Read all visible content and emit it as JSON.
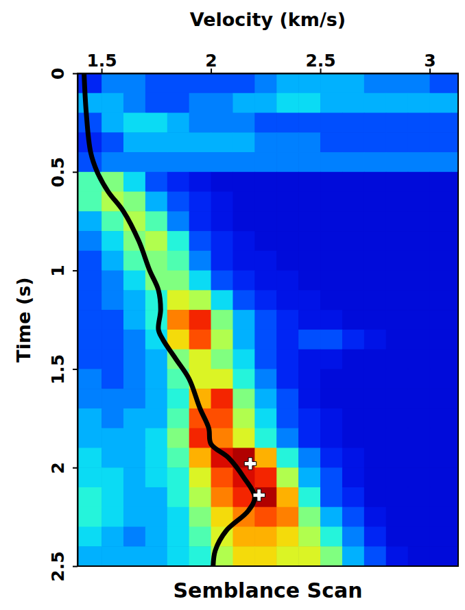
{
  "chart_data": {
    "type": "heatmap",
    "title": "Semblance Scan",
    "x_label": "Velocity (km/s)",
    "y_label": "Time (s)",
    "xlim": [
      1.39,
      3.13
    ],
    "ylim": [
      0,
      2.5
    ],
    "xticks": [
      1.5,
      2,
      2.5,
      3
    ],
    "yticks": [
      0,
      0.5,
      1,
      1.5,
      2,
      2.5
    ],
    "heatmap": {
      "x_edges": [
        1.39,
        1.5,
        1.6,
        1.7,
        1.8,
        1.9,
        2.0,
        2.1,
        2.2,
        2.3,
        2.4,
        2.5,
        2.6,
        2.7,
        2.8,
        2.9,
        3.0,
        3.1,
        3.2
      ],
      "y_edges": [
        0,
        0.1,
        0.2,
        0.3,
        0.4,
        0.5,
        0.6,
        0.7,
        0.8,
        0.9,
        1.0,
        1.1,
        1.2,
        1.3,
        1.4,
        1.5,
        1.6,
        1.7,
        1.8,
        1.9,
        2.0,
        2.1,
        2.2,
        2.3,
        2.4,
        2.5
      ],
      "zlim": [
        0,
        1
      ],
      "z": [
        [
          0.15,
          0.25,
          0.25,
          0.2,
          0.2,
          0.2,
          0.2,
          0.2,
          0.25,
          0.3,
          0.3,
          0.3,
          0.3,
          0.25,
          0.25,
          0.25,
          0.2,
          0.2
        ],
        [
          0.3,
          0.3,
          0.25,
          0.2,
          0.2,
          0.25,
          0.25,
          0.3,
          0.3,
          0.35,
          0.35,
          0.3,
          0.3,
          0.3,
          0.3,
          0.3,
          0.3,
          0.3
        ],
        [
          0.2,
          0.3,
          0.35,
          0.35,
          0.3,
          0.25,
          0.25,
          0.25,
          0.2,
          0.2,
          0.2,
          0.2,
          0.2,
          0.2,
          0.2,
          0.2,
          0.2,
          0.2
        ],
        [
          0.15,
          0.2,
          0.3,
          0.3,
          0.3,
          0.3,
          0.3,
          0.3,
          0.25,
          0.25,
          0.25,
          0.2,
          0.2,
          0.2,
          0.2,
          0.2,
          0.2,
          0.2
        ],
        [
          0.2,
          0.25,
          0.25,
          0.25,
          0.25,
          0.25,
          0.25,
          0.25,
          0.25,
          0.25,
          0.25,
          0.25,
          0.25,
          0.25,
          0.25,
          0.25,
          0.25,
          0.25
        ],
        [
          0.45,
          0.5,
          0.35,
          0.2,
          0.15,
          0.12,
          0.1,
          0.1,
          0.1,
          0.1,
          0.1,
          0.1,
          0.1,
          0.1,
          0.1,
          0.1,
          0.1,
          0.1
        ],
        [
          0.45,
          0.55,
          0.5,
          0.3,
          0.2,
          0.15,
          0.12,
          0.1,
          0.1,
          0.1,
          0.1,
          0.1,
          0.1,
          0.1,
          0.1,
          0.1,
          0.1,
          0.1
        ],
        [
          0.3,
          0.45,
          0.55,
          0.45,
          0.25,
          0.15,
          0.12,
          0.1,
          0.1,
          0.1,
          0.1,
          0.1,
          0.1,
          0.1,
          0.1,
          0.1,
          0.1,
          0.1
        ],
        [
          0.25,
          0.35,
          0.5,
          0.55,
          0.4,
          0.2,
          0.15,
          0.12,
          0.1,
          0.1,
          0.1,
          0.1,
          0.1,
          0.1,
          0.1,
          0.1,
          0.1,
          0.1
        ],
        [
          0.2,
          0.3,
          0.45,
          0.5,
          0.45,
          0.25,
          0.15,
          0.12,
          0.12,
          0.1,
          0.1,
          0.1,
          0.1,
          0.1,
          0.1,
          0.1,
          0.1,
          0.1
        ],
        [
          0.2,
          0.25,
          0.35,
          0.5,
          0.5,
          0.35,
          0.2,
          0.15,
          0.12,
          0.12,
          0.1,
          0.1,
          0.1,
          0.1,
          0.1,
          0.1,
          0.1,
          0.1
        ],
        [
          0.2,
          0.25,
          0.3,
          0.4,
          0.6,
          0.55,
          0.35,
          0.2,
          0.15,
          0.12,
          0.12,
          0.1,
          0.1,
          0.1,
          0.1,
          0.1,
          0.1,
          0.1
        ],
        [
          0.2,
          0.2,
          0.3,
          0.4,
          0.75,
          0.85,
          0.5,
          0.3,
          0.2,
          0.15,
          0.12,
          0.12,
          0.1,
          0.1,
          0.1,
          0.1,
          0.1,
          0.1
        ],
        [
          0.2,
          0.2,
          0.25,
          0.35,
          0.65,
          0.8,
          0.55,
          0.3,
          0.2,
          0.15,
          0.2,
          0.2,
          0.15,
          0.12,
          0.1,
          0.1,
          0.1,
          0.1
        ],
        [
          0.2,
          0.2,
          0.25,
          0.3,
          0.5,
          0.6,
          0.5,
          0.35,
          0.2,
          0.15,
          0.12,
          0.12,
          0.1,
          0.1,
          0.1,
          0.1,
          0.1,
          0.1
        ],
        [
          0.25,
          0.2,
          0.25,
          0.3,
          0.45,
          0.6,
          0.6,
          0.4,
          0.25,
          0.15,
          0.12,
          0.1,
          0.1,
          0.1,
          0.1,
          0.1,
          0.1,
          0.1
        ],
        [
          0.25,
          0.25,
          0.25,
          0.3,
          0.4,
          0.7,
          0.85,
          0.5,
          0.3,
          0.2,
          0.12,
          0.1,
          0.1,
          0.1,
          0.1,
          0.1,
          0.1,
          0.1
        ],
        [
          0.3,
          0.25,
          0.3,
          0.3,
          0.45,
          0.8,
          0.8,
          0.55,
          0.35,
          0.2,
          0.15,
          0.12,
          0.1,
          0.1,
          0.1,
          0.1,
          0.1,
          0.1
        ],
        [
          0.3,
          0.3,
          0.3,
          0.35,
          0.5,
          0.85,
          0.75,
          0.6,
          0.4,
          0.25,
          0.15,
          0.12,
          0.1,
          0.1,
          0.1,
          0.1,
          0.1,
          0.1
        ],
        [
          0.35,
          0.3,
          0.3,
          0.35,
          0.45,
          0.7,
          0.9,
          0.95,
          0.7,
          0.4,
          0.25,
          0.15,
          0.12,
          0.1,
          0.1,
          0.1,
          0.1,
          0.1
        ],
        [
          0.35,
          0.35,
          0.3,
          0.35,
          0.4,
          0.6,
          0.8,
          0.9,
          0.85,
          0.55,
          0.3,
          0.2,
          0.12,
          0.1,
          0.1,
          0.1,
          0.1,
          0.1
        ],
        [
          0.4,
          0.35,
          0.3,
          0.3,
          0.4,
          0.55,
          0.75,
          0.85,
          0.95,
          0.7,
          0.4,
          0.2,
          0.15,
          0.1,
          0.1,
          0.1,
          0.1,
          0.1
        ],
        [
          0.4,
          0.35,
          0.3,
          0.3,
          0.35,
          0.5,
          0.65,
          0.75,
          0.8,
          0.75,
          0.5,
          0.3,
          0.2,
          0.12,
          0.1,
          0.1,
          0.1,
          0.1
        ],
        [
          0.35,
          0.3,
          0.25,
          0.3,
          0.35,
          0.45,
          0.6,
          0.7,
          0.7,
          0.65,
          0.55,
          0.4,
          0.25,
          0.15,
          0.1,
          0.1,
          0.1,
          0.1
        ],
        [
          0.3,
          0.3,
          0.3,
          0.3,
          0.35,
          0.4,
          0.55,
          0.65,
          0.65,
          0.6,
          0.6,
          0.5,
          0.3,
          0.2,
          0.12,
          0.1,
          0.1,
          0.1
        ]
      ]
    },
    "series": [
      {
        "type": "line",
        "color": "#000000",
        "x": [
          1.42,
          1.43,
          1.45,
          1.48,
          1.53,
          1.6,
          1.67,
          1.72,
          1.76,
          1.77,
          1.76,
          1.78,
          1.84,
          1.9,
          1.95,
          1.99,
          2.0,
          2.08,
          2.15,
          2.2,
          2.17,
          2.07,
          2.02,
          2.01
        ],
        "y": [
          0,
          0.2,
          0.4,
          0.5,
          0.6,
          0.7,
          0.85,
          1.0,
          1.1,
          1.2,
          1.3,
          1.35,
          1.45,
          1.55,
          1.7,
          1.8,
          1.88,
          1.95,
          2.05,
          2.15,
          2.22,
          2.32,
          2.42,
          2.5
        ]
      },
      {
        "type": "scatter",
        "marker": "cross",
        "color": "#ffffff",
        "x": [
          2.18,
          2.22
        ],
        "y": [
          1.98,
          2.14
        ]
      }
    ]
  }
}
